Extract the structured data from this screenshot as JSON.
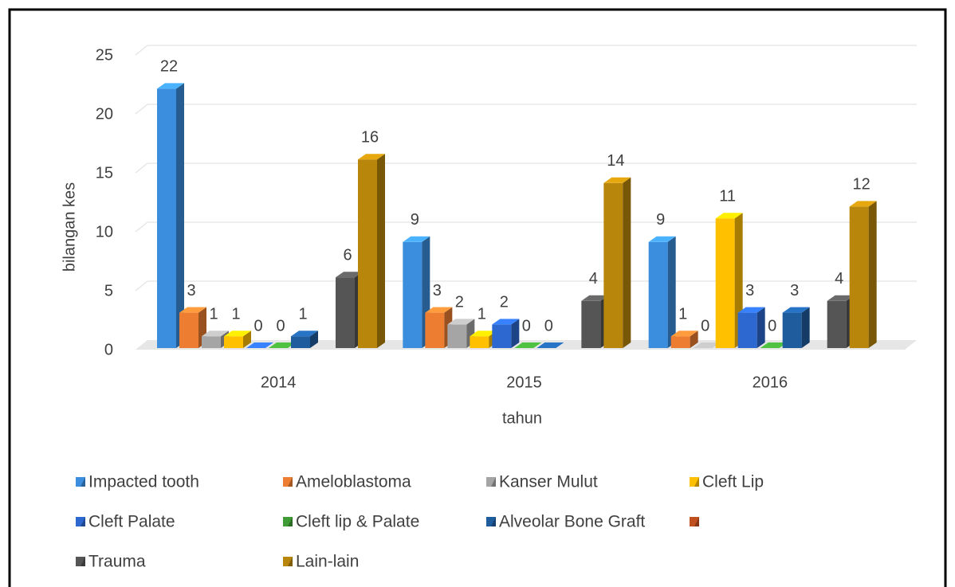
{
  "chart_data": {
    "type": "bar3d",
    "x_label": "tahun",
    "y_label": "bilangan kes",
    "categories": [
      "2014",
      "2015",
      "2016"
    ],
    "ylim": [
      0,
      25
    ],
    "yticks": [
      0,
      5,
      10,
      15,
      20,
      25
    ],
    "grid": true,
    "legend": "bottom",
    "series": [
      {
        "name": "Impacted tooth",
        "color": "#3b8ede",
        "values": [
          22,
          9,
          9
        ]
      },
      {
        "name": "Ameloblastoma",
        "color": "#ed7d31",
        "values": [
          3,
          3,
          1
        ]
      },
      {
        "name": "Kanser Mulut",
        "color": "#a5a5a5",
        "values": [
          1,
          2,
          0
        ]
      },
      {
        "name": "Cleft Lip",
        "color": "#ffc000",
        "values": [
          1,
          1,
          11
        ]
      },
      {
        "name": "Cleft Palate",
        "color": "#2d68d0",
        "values": [
          0,
          2,
          3
        ]
      },
      {
        "name": "Cleft lip & Palate",
        "color": "#3f9b35",
        "values": [
          0,
          0,
          0
        ]
      },
      {
        "name": "Alveolar Bone Graft",
        "color": "#1f5c9e",
        "values": [
          1,
          0,
          3
        ]
      },
      {
        "name": null,
        "color": "#c0501f",
        "values": [
          null,
          null,
          null
        ]
      },
      {
        "name": "Trauma",
        "color": "#555555",
        "values": [
          6,
          4,
          4
        ]
      },
      {
        "name": "Lain-lain",
        "color": "#b8860b",
        "values": [
          16,
          14,
          12
        ]
      }
    ]
  }
}
